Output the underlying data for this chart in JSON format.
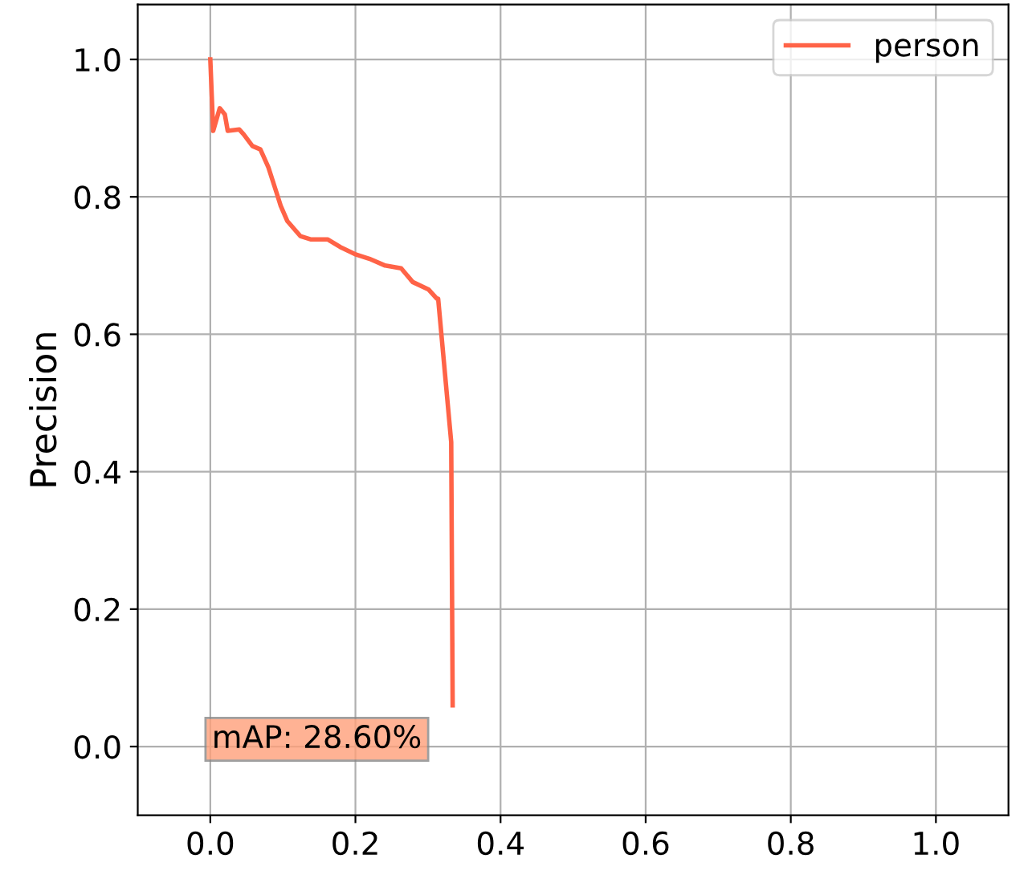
{
  "chart_data": {
    "type": "line",
    "ylabel": "Precision",
    "xlim": [
      -0.1,
      1.1
    ],
    "ylim": [
      -0.1,
      1.08
    ],
    "xticks": [
      {
        "value": 0,
        "label": "0.0"
      },
      {
        "value": 0.2,
        "label": "0.2"
      },
      {
        "value": 0.4,
        "label": "0.4"
      },
      {
        "value": 0.6,
        "label": "0.6"
      },
      {
        "value": 0.8,
        "label": "0.8"
      },
      {
        "value": 1,
        "label": "1.0"
      }
    ],
    "yticks": [
      {
        "value": 0,
        "label": "0.0"
      },
      {
        "value": 0.2,
        "label": "0.2"
      },
      {
        "value": 0.4,
        "label": "0.4"
      },
      {
        "value": 0.6,
        "label": "0.6"
      },
      {
        "value": 0.8,
        "label": "0.8"
      },
      {
        "value": 1,
        "label": "1.0"
      }
    ],
    "grid": true,
    "legend": "top right",
    "line_style": "solid",
    "marker": "none",
    "series": [
      {
        "name": "person",
        "color": "#ff6347",
        "x": [
          0,
          0.002,
          0.004,
          0.013,
          0.02,
          0.024,
          0.04,
          0.046,
          0.058,
          0.069,
          0.08,
          0.091,
          0.097,
          0.106,
          0.124,
          0.139,
          0.162,
          0.179,
          0.201,
          0.219,
          0.241,
          0.263,
          0.279,
          0.301,
          0.312,
          0.314,
          0.332,
          0.334
        ],
        "values": [
          1.0,
          0.947,
          0.896,
          0.929,
          0.92,
          0.896,
          0.898,
          0.891,
          0.874,
          0.869,
          0.843,
          0.807,
          0.787,
          0.765,
          0.743,
          0.738,
          0.738,
          0.727,
          0.716,
          0.71,
          0.7,
          0.696,
          0.676,
          0.665,
          0.652,
          0.652,
          0.443,
          0.06
        ]
      }
    ],
    "annotations": [
      "mAP: 28.60%"
    ]
  }
}
